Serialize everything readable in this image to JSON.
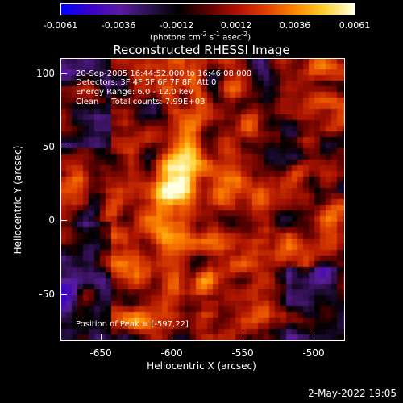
{
  "colorbar": {
    "tick_labels": [
      "-0.0061",
      "-0.0036",
      "-0.0012",
      "0.0012",
      "0.0036",
      "0.0061"
    ],
    "units": "(photons cm",
    "units_sup1": "-2",
    "units_mid1": " s",
    "units_sup2": "-1",
    "units_mid2": " asec",
    "units_sup3": "-2",
    "units_end": ")",
    "gradient_colors": [
      "#0000ff",
      "#3a00c8",
      "#5a1aa0",
      "#2a1050",
      "#000000",
      "#5a0000",
      "#b01000",
      "#e04000",
      "#ff8800",
      "#ffd030",
      "#ffffe0"
    ]
  },
  "title": "Reconstructed RHESSI Image",
  "info": {
    "line1": "20-Sep-2005 16:44:52.000 to 16:46:08.000",
    "line2": "Detectors: 3F 4F 5F 6F 7F 8F, Att 0",
    "line3": "Energy Range: 6.0 - 12.0 keV",
    "line4": "Clean     Total counts: 7.99E+03",
    "peak": "Position of Peak = [-597,22]"
  },
  "axes": {
    "xlabel": "Heliocentric X (arcsec)",
    "ylabel": "Heliocentric Y (arcsec)",
    "xticks": [
      "-650",
      "-600",
      "-550",
      "-500"
    ],
    "yticks": [
      "100",
      "50",
      "0",
      "-50"
    ],
    "xrange": [
      -675,
      -480
    ],
    "yrange": [
      -85,
      110
    ]
  },
  "peak_position": [
    -597,
    22
  ],
  "date": "2-May-2022 19:05"
}
